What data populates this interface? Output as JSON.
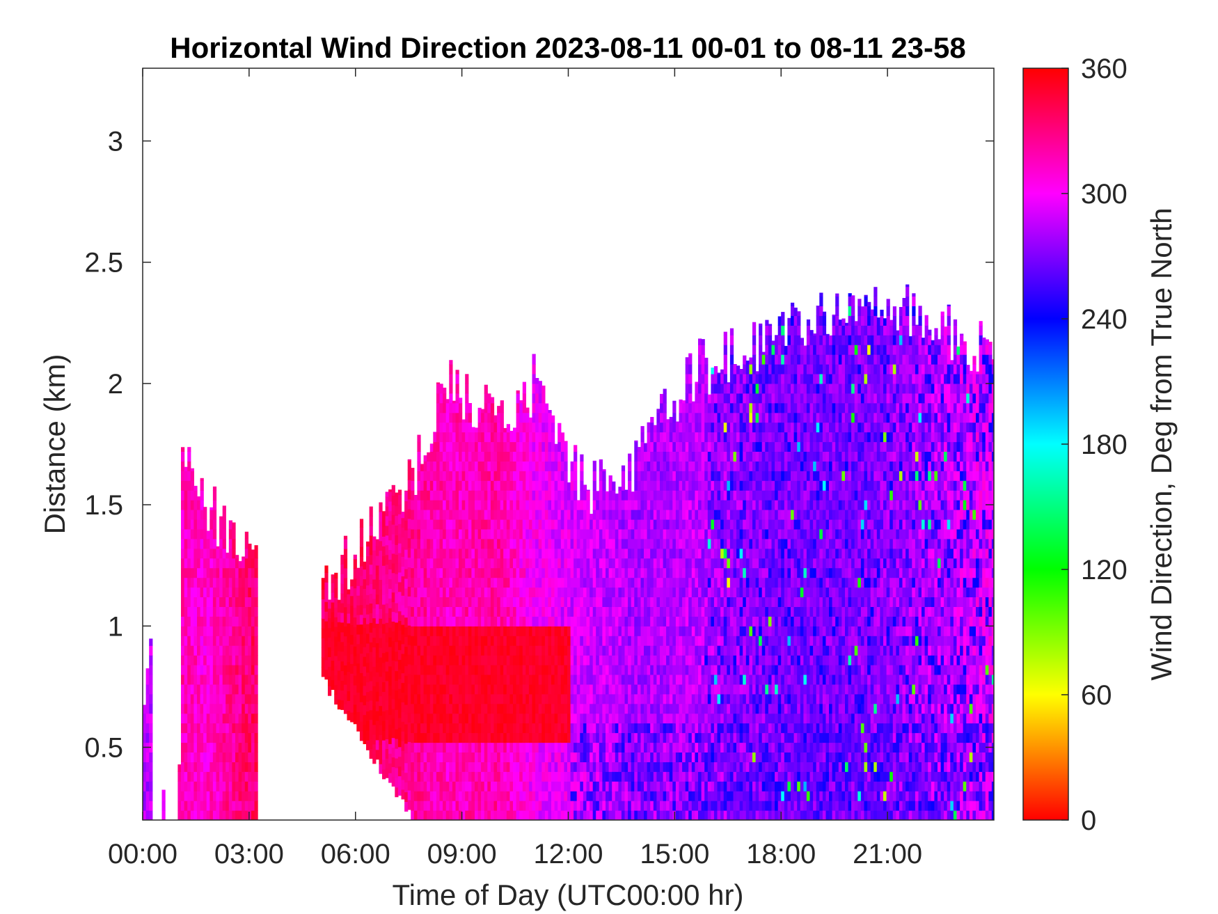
{
  "chart_data": {
    "type": "heatmap",
    "title": "Horizontal Wind Direction 2023-08-11 00-01 to 08-11 23-58",
    "xlabel": "Time of Day (UTC00:00 hr)",
    "ylabel": "Distance (km)",
    "xlim": [
      0,
      24
    ],
    "ylim": [
      0.2,
      3.3
    ],
    "x_ticks": [
      0,
      3,
      6,
      9,
      12,
      15,
      18,
      21
    ],
    "x_tick_labels": [
      "00:00",
      "03:00",
      "06:00",
      "09:00",
      "12:00",
      "15:00",
      "18:00",
      "21:00"
    ],
    "y_ticks": [
      0.5,
      1,
      1.5,
      2,
      2.5,
      3
    ],
    "y_tick_labels": [
      "0.5",
      "1",
      "1.5",
      "2",
      "2.5",
      "3"
    ],
    "colorbar": {
      "label": "Wind Direction, Deg from True North",
      "range": [
        0,
        360
      ],
      "ticks": [
        0,
        60,
        120,
        180,
        240,
        300,
        360
      ],
      "tick_labels": [
        "0",
        "60",
        "120",
        "180",
        "240",
        "300",
        "360"
      ],
      "colormap": "hsv"
    },
    "data_top_km_by_hour": [
      {
        "hour": 0.0,
        "top_km": 0.8,
        "direction_deg": 280
      },
      {
        "hour": 1.0,
        "top_km": 1.8,
        "direction_deg": 318
      },
      {
        "hour": 1.7,
        "top_km": 1.48,
        "direction_deg": 310
      },
      {
        "hour": 2.5,
        "top_km": 1.4,
        "direction_deg": 325
      },
      {
        "hour": 3.0,
        "top_km": 1.3,
        "direction_deg": 335
      },
      {
        "hour": 5.0,
        "top_km": 1.15,
        "direction_deg": 340
      },
      {
        "hour": 6.0,
        "top_km": 1.3,
        "direction_deg": 335
      },
      {
        "hour": 7.5,
        "top_km": 1.6,
        "direction_deg": 325
      },
      {
        "hour": 8.5,
        "top_km": 2.0,
        "direction_deg": 315
      },
      {
        "hour": 10.0,
        "top_km": 1.85,
        "direction_deg": 320
      },
      {
        "hour": 11.0,
        "top_km": 2.0,
        "direction_deg": 300
      },
      {
        "hour": 12.5,
        "top_km": 1.55,
        "direction_deg": 290
      },
      {
        "hour": 14.0,
        "top_km": 1.7,
        "direction_deg": 280
      },
      {
        "hour": 15.5,
        "top_km": 2.05,
        "direction_deg": 285
      },
      {
        "hour": 17.0,
        "top_km": 2.15,
        "direction_deg": 275
      },
      {
        "hour": 18.5,
        "top_km": 2.25,
        "direction_deg": 270
      },
      {
        "hour": 20.0,
        "top_km": 2.3,
        "direction_deg": 270
      },
      {
        "hour": 21.5,
        "top_km": 2.3,
        "direction_deg": 280
      },
      {
        "hour": 24.0,
        "top_km": 2.1,
        "direction_deg": 300
      }
    ]
  }
}
